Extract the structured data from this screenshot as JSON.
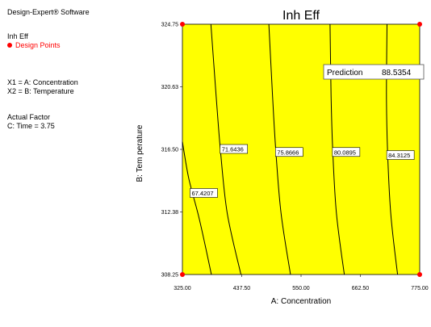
{
  "sidebar": {
    "software": "Design-Expert® Software",
    "response": "Inh Eff",
    "design_points_label": "Design Points",
    "x1": "X1 = A: Concentration",
    "x2": "X2 = B: Temperature",
    "actual_factor_heading": "Actual Factor",
    "actual_factor_value": "C: Time = 3.75"
  },
  "colors": {
    "fill": "#ffff00",
    "design_points": "#ff0000",
    "contour": "#000000"
  },
  "chart_data": {
    "type": "contour",
    "title": "Inh Eff",
    "xlabel": "A: Concentration",
    "ylabel": "B: Tem perature",
    "xlim": [
      325.0,
      775.0
    ],
    "ylim": [
      308.25,
      324.75
    ],
    "x_ticks": [
      "325.00",
      "437.50",
      "550.00",
      "662.50",
      "775.00"
    ],
    "y_ticks": [
      "308.25",
      "312.38",
      "316.50",
      "320.63",
      "324.75"
    ],
    "contours": [
      {
        "level": "67.4207",
        "points": [
          [
            325,
            317.0
          ],
          [
            337,
            314.6
          ],
          [
            355,
            312.2
          ],
          [
            368,
            310.2
          ],
          [
            380,
            308.25
          ]
        ]
      },
      {
        "level": "71.6436",
        "points": [
          [
            379,
            324.75
          ],
          [
            389,
            320.0
          ],
          [
            397,
            316.5
          ],
          [
            410,
            312.3
          ],
          [
            436,
            308.25
          ]
        ]
      },
      {
        "level": "75.8666",
        "points": [
          [
            489,
            324.75
          ],
          [
            496,
            320.0
          ],
          [
            502,
            316.5
          ],
          [
            512,
            312.3
          ],
          [
            530,
            308.25
          ]
        ]
      },
      {
        "level": "80.0895",
        "points": [
          [
            605,
            324.75
          ],
          [
            607,
            320.0
          ],
          [
            610,
            316.5
          ],
          [
            617,
            312.3
          ],
          [
            632,
            308.25
          ]
        ]
      },
      {
        "level": "84.3125",
        "points": [
          [
            713,
            324.75
          ],
          [
            712,
            320.0
          ],
          [
            714,
            316.5
          ],
          [
            720,
            312.3
          ],
          [
            733,
            308.25
          ]
        ]
      }
    ],
    "contour_labels": [
      {
        "text": "67.4207",
        "x": 341,
        "y": 313.6
      },
      {
        "text": "71.6436",
        "x": 398,
        "y": 316.5
      },
      {
        "text": "75.8666",
        "x": 503,
        "y": 316.3
      },
      {
        "text": "80.0895",
        "x": 611,
        "y": 316.3
      },
      {
        "text": "84.3125",
        "x": 714,
        "y": 316.1
      }
    ],
    "design_points": [
      [
        325,
        324.75
      ],
      [
        775,
        324.75
      ],
      [
        325,
        308.25
      ],
      [
        775,
        308.25
      ]
    ],
    "prediction": {
      "label": "Prediction",
      "value": "88.5354"
    }
  }
}
